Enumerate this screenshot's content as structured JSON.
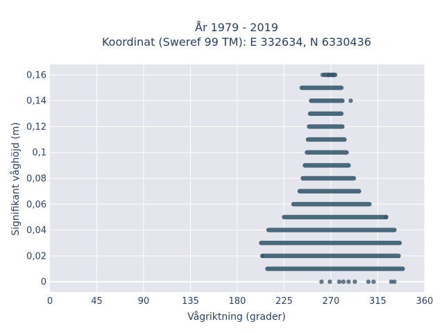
{
  "chart_data": {
    "type": "scatter",
    "title_line1": "År 1979 - 2019",
    "title_line2": "Koordinat (Sweref 99 TM): E 332634, N 6330436",
    "xlabel": "Vågriktning (grader)",
    "ylabel": "Signifikant våghöjd (m)",
    "xlim": [
      0,
      360
    ],
    "ylim": [
      -0.008,
      0.168
    ],
    "x_ticks": [
      0,
      45,
      90,
      135,
      180,
      225,
      270,
      315,
      360
    ],
    "y_ticks": [
      0,
      0.02,
      0.04,
      0.06,
      0.08,
      0.1,
      0.12,
      0.14,
      0.16
    ],
    "y_tick_labels": [
      "0",
      "0,02",
      "0,04",
      "0,06",
      "0,08",
      "0,1",
      "0,12",
      "0,14",
      "0,16"
    ],
    "grid": true,
    "marker_color": "#2e5266",
    "plot_bg": "#e5e5ee",
    "bands": [
      {
        "y": 0.16,
        "x_min": 264,
        "x_max": 274
      },
      {
        "y": 0.15,
        "x_min": 242,
        "x_max": 280
      },
      {
        "y": 0.14,
        "x_min": 251,
        "x_max": 281
      },
      {
        "y": 0.13,
        "x_min": 250,
        "x_max": 280
      },
      {
        "y": 0.12,
        "x_min": 249,
        "x_max": 281
      },
      {
        "y": 0.11,
        "x_min": 248,
        "x_max": 283
      },
      {
        "y": 0.1,
        "x_min": 247,
        "x_max": 285
      },
      {
        "y": 0.09,
        "x_min": 245,
        "x_max": 287
      },
      {
        "y": 0.08,
        "x_min": 243,
        "x_max": 292
      },
      {
        "y": 0.07,
        "x_min": 240,
        "x_max": 297
      },
      {
        "y": 0.06,
        "x_min": 234,
        "x_max": 307
      },
      {
        "y": 0.05,
        "x_min": 225,
        "x_max": 323
      },
      {
        "y": 0.04,
        "x_min": 210,
        "x_max": 331
      },
      {
        "y": 0.03,
        "x_min": 203,
        "x_max": 336
      },
      {
        "y": 0.02,
        "x_min": 205,
        "x_max": 335
      },
      {
        "y": 0.01,
        "x_min": 209,
        "x_max": 339
      }
    ],
    "scattered_points": [
      {
        "x": 262,
        "y": 0.16
      },
      {
        "x": 268,
        "y": 0.16
      },
      {
        "x": 272,
        "y": 0.16
      },
      {
        "x": 289,
        "y": 0.14
      },
      {
        "x": 323,
        "y": 0.05
      },
      {
        "x": 204,
        "y": 0.02
      },
      {
        "x": 261,
        "y": 0
      },
      {
        "x": 269,
        "y": 0
      },
      {
        "x": 278,
        "y": 0
      },
      {
        "x": 282,
        "y": 0
      },
      {
        "x": 287,
        "y": 0
      },
      {
        "x": 293,
        "y": 0
      },
      {
        "x": 306,
        "y": 0
      },
      {
        "x": 311,
        "y": 0
      },
      {
        "x": 328,
        "y": 0
      },
      {
        "x": 331,
        "y": 0
      }
    ]
  }
}
